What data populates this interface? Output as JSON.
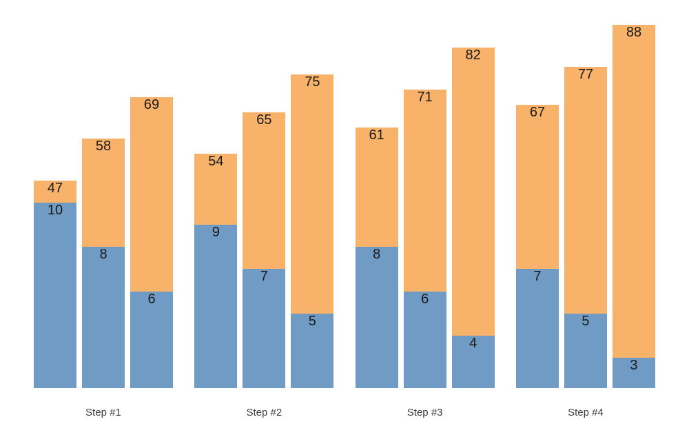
{
  "chart_data": {
    "type": "bar",
    "subtype": "grouped-stacked",
    "title": "",
    "xlabel": "",
    "ylabel": "",
    "categories": [
      "Step #1",
      "Step #2",
      "Step #3",
      "Step #4"
    ],
    "series": [
      {
        "name": "blue-bottom-segment",
        "color": "#6f9bc4",
        "values": [
          [
            10,
            8,
            6
          ],
          [
            9,
            7,
            5
          ],
          [
            8,
            6,
            4
          ],
          [
            7,
            5,
            3
          ]
        ]
      },
      {
        "name": "orange-top-segment",
        "color": "#f9b269",
        "values": [
          [
            47,
            58,
            69
          ],
          [
            54,
            65,
            75
          ],
          [
            61,
            71,
            82
          ],
          [
            67,
            77,
            88
          ]
        ]
      }
    ],
    "value_labels": "each segment labeled with its value just below segment top, centered",
    "legend": "none",
    "grid": false,
    "axes_visible": false,
    "background": "#ffffff",
    "number_label_color": "#1a1a1a",
    "category_label_color": "#3d3d3d"
  }
}
